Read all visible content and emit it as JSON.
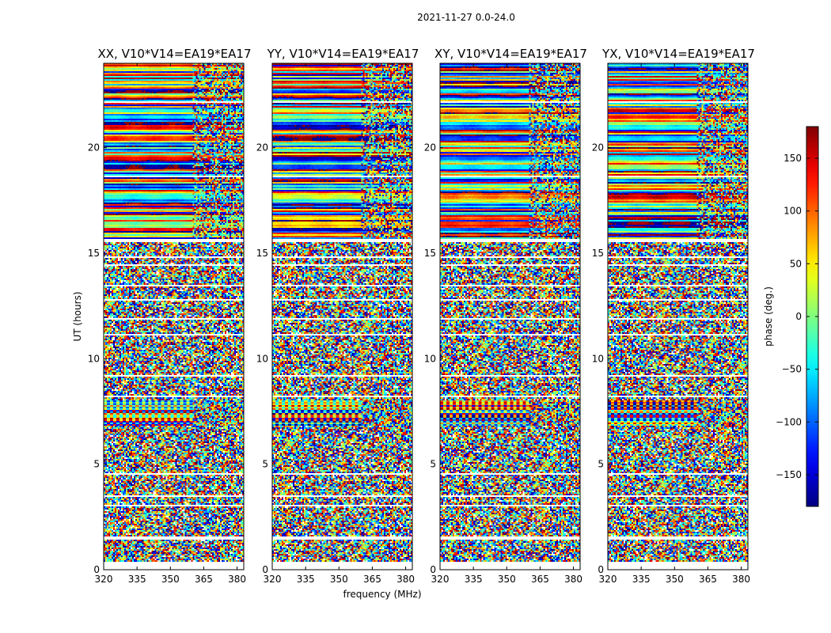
{
  "suptitle": "2021-11-27 0.0-24.0",
  "chart_data": {
    "type": "heatmap",
    "panels": [
      {
        "title": "XX, V10*V14=EA19*EA17"
      },
      {
        "title": "YY, V10*V14=EA19*EA17"
      },
      {
        "title": "XY, V10*V14=EA19*EA17"
      },
      {
        "title": "YX, V10*V14=EA19*EA17"
      }
    ],
    "xlabel": "frequency (MHz)",
    "ylabel": "UT (hours)",
    "xlim": [
      320,
      383
    ],
    "ylim": [
      0,
      24
    ],
    "xticks": [
      "320",
      "335",
      "350",
      "365",
      "380"
    ],
    "xtick_values": [
      320,
      335,
      350,
      365,
      380
    ],
    "yticks": [
      "0",
      "5",
      "10",
      "15",
      "20"
    ],
    "ytick_values": [
      0,
      5,
      10,
      15,
      20
    ],
    "colorbar": {
      "label": "phase (deg.)",
      "range": [
        -180,
        180
      ],
      "ticks": [
        "−150",
        "−100",
        "−50",
        "0",
        "50",
        "100",
        "150"
      ],
      "tick_values": [
        -150,
        -100,
        -50,
        0,
        50,
        100,
        150
      ],
      "colormap": "jet"
    },
    "blank_bands_hours": [
      [
        0.0,
        0.35
      ],
      [
        1.45,
        1.6
      ],
      [
        15.5,
        15.65
      ]
    ]
  }
}
